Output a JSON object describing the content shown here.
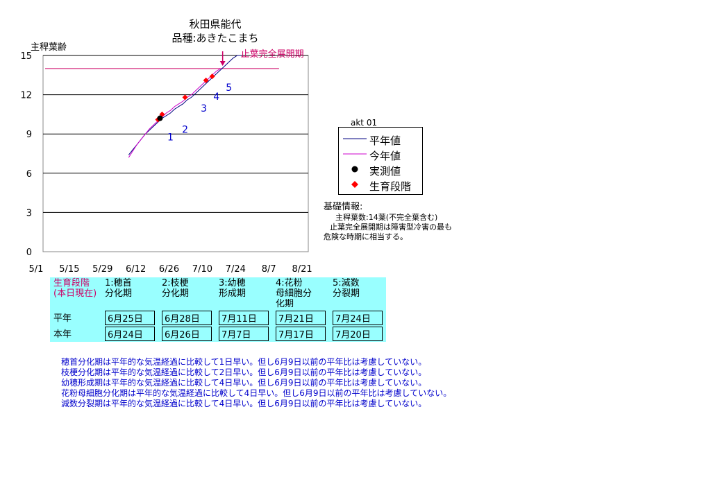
{
  "chart_data": {
    "type": "line",
    "title": "秋田県能代",
    "subtitle": "品種:あきたこまち",
    "ylabel": "主稈葉齢",
    "xlabel": "",
    "ylim": [
      0,
      15
    ],
    "yticks": [
      0,
      3,
      6,
      9,
      12,
      15
    ],
    "xticks": [
      "5/1",
      "5/15",
      "5/29",
      "6/12",
      "6/26",
      "7/10",
      "7/24",
      "8/7",
      "8/21"
    ],
    "xtick_days": [
      0,
      14,
      28,
      42,
      56,
      70,
      84,
      98,
      112
    ],
    "grid": "horizontal",
    "legend_position": "right",
    "series": [
      {
        "name": "平年値",
        "color": "#000080",
        "x": [
          40,
          42,
          44,
          46,
          48,
          50,
          52,
          54,
          56,
          58,
          60,
          62,
          64,
          66,
          68,
          70,
          72,
          74,
          76,
          78,
          80,
          82,
          84,
          86,
          88,
          90,
          92,
          94
        ],
        "y": [
          7.4,
          7.8,
          8.2,
          8.6,
          9.0,
          9.3,
          9.6,
          9.9,
          10.2,
          10.4,
          10.6,
          10.9,
          11.1,
          11.3,
          11.6,
          11.8,
          12.1,
          12.4,
          12.7,
          13.0,
          13.3,
          13.6,
          13.9,
          14.2,
          14.5,
          14.8,
          15.0,
          15.0
        ]
      },
      {
        "name": "今年値",
        "color": "#cc00cc",
        "x": [
          40,
          42,
          44,
          46,
          48,
          50,
          52,
          54,
          56,
          58,
          60,
          62,
          64,
          66,
          68,
          70,
          72,
          74,
          76,
          78,
          80,
          82,
          84
        ],
        "y": [
          7.2,
          7.7,
          8.2,
          8.6,
          9.0,
          9.4,
          9.7,
          10.0,
          10.3,
          10.6,
          10.8,
          11.1,
          11.3,
          11.5,
          11.8,
          12.0,
          12.3,
          12.6,
          12.9,
          13.2,
          13.5,
          13.8,
          14.0
        ]
      }
    ],
    "hline": {
      "y": 14,
      "color": "#cc0066",
      "x_start": 0,
      "x_end": 113
    },
    "observed": {
      "name": "実測値",
      "color": "#000000",
      "points": [
        {
          "x": 55,
          "y": 10.2
        }
      ]
    },
    "stages": {
      "name": "生育段階",
      "color": "#ff0000",
      "points": [
        {
          "x": 54,
          "y": 10.1
        },
        {
          "x": 56,
          "y": 10.5
        },
        {
          "x": 67,
          "y": 11.8
        },
        {
          "x": 77,
          "y": 13.1
        },
        {
          "x": 80,
          "y": 13.4
        }
      ]
    },
    "stage_labels": [
      {
        "text": "1",
        "x": 60,
        "y": 8.5
      },
      {
        "text": "2",
        "x": 67,
        "y": 9.1
      },
      {
        "text": "3",
        "x": 76,
        "y": 10.7
      },
      {
        "text": "4",
        "x": 82,
        "y": 11.6
      },
      {
        "text": "5",
        "x": 88,
        "y": 12.3
      }
    ],
    "annotation": {
      "text": "止葉完全展開期",
      "x": 85,
      "y": 15,
      "color": "#cc0066"
    }
  },
  "legend": {
    "station_code": "akt 01",
    "items": [
      {
        "label": "平年値",
        "symbol": "line",
        "color": "#000080"
      },
      {
        "label": "今年値",
        "symbol": "line",
        "color": "#cc00cc"
      },
      {
        "label": "実測値",
        "symbol": "circle",
        "color": "#000000"
      },
      {
        "label": "生育段階",
        "symbol": "diamond",
        "color": "#ff0000"
      }
    ]
  },
  "info": {
    "title": "基礎情報:",
    "line1": "主稈葉数:14葉(不完全葉含む)",
    "line2": "止葉完全展開期は障害型冷害の最も",
    "line3": "危険な時期に相当する。"
  },
  "table": {
    "header_label": "生育段階\n(本日現在)",
    "stages": [
      "1:穂首\n分化期",
      "2:枝梗\n分化期",
      "3:幼穂\n形成期",
      "4:花粉\n母細胞分\n化期",
      "5:減数\n分裂期"
    ],
    "rows": [
      {
        "label": "平年",
        "values": [
          "6月25日",
          "6月28日",
          "7月11日",
          "7月21日",
          "7月24日"
        ]
      },
      {
        "label": "本年",
        "values": [
          "6月24日",
          "6月26日",
          "7月7日",
          "7月17日",
          "7月20日"
        ]
      }
    ]
  },
  "notes": [
    "穂首分化期は平年的な気温経過に比較して1日早い。但し6月9日以前の平年比は考慮していない。",
    "枝梗分化期は平年的な気温経過に比較して2日早い。但し6月9日以前の平年比は考慮していない。",
    "幼穂形成期は平年的な気温経過に比較して4日早い。但し6月9日以前の平年比は考慮していない。",
    "花粉母細胞分化期は平年的な気温経過に比較して4日早い。但し6月9日以前の平年比は考慮していない。",
    "減数分裂期は平年的な気温経過に比較して4日早い。但し6月9日以前の平年比は考慮していない。"
  ]
}
